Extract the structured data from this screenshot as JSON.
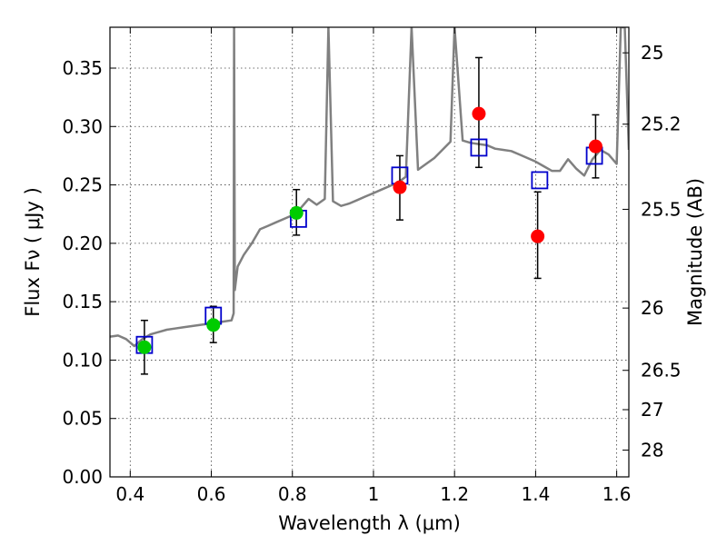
{
  "chart_data": {
    "type": "scatter",
    "xlabel": "Wavelength  λ (μm)",
    "ylabel": "Flux  Fν  ( μJy )",
    "y2label": "Magnitude (AB)",
    "xlim": [
      0.35,
      1.63
    ],
    "ylim": [
      0.0,
      0.385
    ],
    "grid": true,
    "x_ticks": [
      0.4,
      0.6,
      0.8,
      1.0,
      1.2,
      1.4,
      1.6
    ],
    "x_tick_labels": [
      "0.4",
      "0.6",
      "0.8",
      "1",
      "1.2",
      "1.4",
      "1.6"
    ],
    "y_ticks": [
      0.0,
      0.05,
      0.1,
      0.15,
      0.2,
      0.25,
      0.3,
      0.35
    ],
    "y_tick_labels": [
      "0.00",
      "0.05",
      "0.10",
      "0.15",
      "0.20",
      "0.25",
      "0.30",
      "0.35"
    ],
    "y2_ticks": [
      {
        "label": "25",
        "mag": 25.0
      },
      {
        "label": "25.2",
        "mag": 25.2
      },
      {
        "label": "25.5",
        "mag": 25.5
      },
      {
        "label": "26",
        "mag": 26.0
      },
      {
        "label": "26.5",
        "mag": 26.5
      },
      {
        "label": "27",
        "mag": 27.0
      },
      {
        "label": "28",
        "mag": 28.0
      }
    ],
    "colors": {
      "template": "#808080",
      "model": "#0000cc",
      "optical": "#00cc00",
      "nir": "#ff0000",
      "error": "#000000"
    },
    "template_spectrum": {
      "x": [
        0.35,
        0.37,
        0.39,
        0.41,
        0.43,
        0.45,
        0.47,
        0.49,
        0.51,
        0.53,
        0.55,
        0.57,
        0.59,
        0.61,
        0.63,
        0.65,
        0.655,
        0.6563,
        0.658,
        0.665,
        0.68,
        0.7,
        0.72,
        0.74,
        0.76,
        0.78,
        0.8,
        0.82,
        0.84,
        0.86,
        0.88,
        0.889,
        0.9,
        0.92,
        0.94,
        0.96,
        0.98,
        1.0,
        1.02,
        1.04,
        1.06,
        1.08,
        1.094,
        1.11,
        1.13,
        1.15,
        1.17,
        1.19,
        1.2,
        1.22,
        1.24,
        1.26,
        1.28,
        1.3,
        1.32,
        1.34,
        1.36,
        1.38,
        1.4,
        1.42,
        1.44,
        1.46,
        1.48,
        1.5,
        1.52,
        1.54,
        1.56,
        1.58,
        1.6,
        1.61,
        1.62,
        1.63
      ],
      "y": [
        0.12,
        0.121,
        0.118,
        0.112,
        0.118,
        0.122,
        0.124,
        0.126,
        0.127,
        0.128,
        0.129,
        0.13,
        0.131,
        0.132,
        0.133,
        0.134,
        0.14,
        0.385,
        0.16,
        0.18,
        0.19,
        0.2,
        0.212,
        0.215,
        0.218,
        0.221,
        0.224,
        0.23,
        0.238,
        0.233,
        0.238,
        0.385,
        0.236,
        0.232,
        0.234,
        0.237,
        0.24,
        0.243,
        0.246,
        0.249,
        0.252,
        0.257,
        0.385,
        0.263,
        0.268,
        0.273,
        0.28,
        0.287,
        0.385,
        0.288,
        0.286,
        0.285,
        0.284,
        0.281,
        0.28,
        0.279,
        0.276,
        0.273,
        0.27,
        0.266,
        0.262,
        0.262,
        0.272,
        0.264,
        0.258,
        0.272,
        0.28,
        0.276,
        0.268,
        0.385,
        0.385,
        0.28
      ]
    },
    "series": [
      {
        "name": "",
        "marker": "square-open",
        "x": [
          0.435,
          0.605,
          0.815,
          1.065,
          1.26,
          1.41,
          1.545
        ],
        "y": [
          0.113,
          0.138,
          0.221,
          0.258,
          0.282,
          0.254,
          0.275
        ]
      },
      {
        "name": "",
        "marker": "circle-green",
        "x": [
          0.435,
          0.605,
          0.81
        ],
        "y": [
          0.111,
          0.13,
          0.226
        ],
        "err_low": [
          0.088,
          0.115,
          0.207
        ],
        "err_high": [
          0.134,
          0.146,
          0.246
        ]
      },
      {
        "name": "",
        "marker": "circle-red",
        "x": [
          1.065,
          1.26,
          1.405,
          1.548
        ],
        "y": [
          0.248,
          0.311,
          0.206,
          0.283
        ],
        "err_low": [
          0.22,
          0.265,
          0.17,
          0.256
        ],
        "err_high": [
          0.275,
          0.359,
          0.244,
          0.31
        ]
      }
    ]
  }
}
